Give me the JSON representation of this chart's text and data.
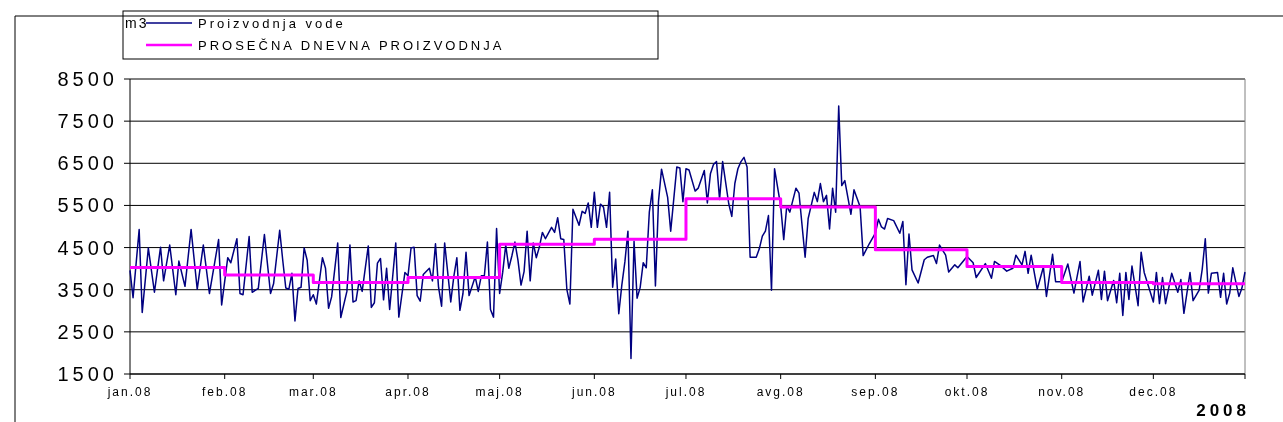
{
  "chart_data": {
    "type": "line",
    "xlabel": "2008",
    "ylabel": "m3",
    "ylim": [
      1500,
      8500
    ],
    "yticks": [
      1500,
      2500,
      3500,
      4500,
      5500,
      6500,
      7500,
      8500
    ],
    "xlim": [
      "2008-01-01",
      "2008-12-31"
    ],
    "xticks": [
      {
        "value": "2008-01-01",
        "label": "jan.08"
      },
      {
        "value": "2008-02-01",
        "label": "feb.08"
      },
      {
        "value": "2008-03-01",
        "label": "mar.08"
      },
      {
        "value": "2008-04-01",
        "label": "apr.08"
      },
      {
        "value": "2008-05-01",
        "label": "maj.08"
      },
      {
        "value": "2008-06-01",
        "label": "jun.08"
      },
      {
        "value": "2008-07-01",
        "label": "jul.08"
      },
      {
        "value": "2008-08-01",
        "label": "avg.08"
      },
      {
        "value": "2008-09-01",
        "label": "sep.08"
      },
      {
        "value": "2008-10-01",
        "label": "okt.08"
      },
      {
        "value": "2008-11-01",
        "label": "nov.08"
      },
      {
        "value": "2008-12-01",
        "label": "dec.08"
      },
      {
        "value": "2008-12-31",
        "label": null
      }
    ],
    "grid": "y",
    "legend": "top left",
    "marker": "none",
    "series": [
      {
        "name": "Proizvodnja vode",
        "color": "#000080",
        "x": [
          "2008-01-01",
          "2008-01-02",
          "2008-01-04",
          "2008-01-05",
          "2008-01-07",
          "2008-01-09",
          "2008-01-11",
          "2008-01-12",
          "2008-01-14",
          "2008-01-16",
          "2008-01-17",
          "2008-01-19",
          "2008-01-21",
          "2008-01-23",
          "2008-01-25",
          "2008-01-27",
          "2008-01-30",
          "2008-01-31",
          "2008-02-02",
          "2008-02-03",
          "2008-02-05",
          "2008-02-06",
          "2008-02-07",
          "2008-02-09",
          "2008-02-10",
          "2008-02-12",
          "2008-02-14",
          "2008-02-16",
          "2008-02-17",
          "2008-02-19",
          "2008-02-20",
          "2008-02-21",
          "2008-02-22",
          "2008-02-23",
          "2008-02-24",
          "2008-02-25",
          "2008-02-26",
          "2008-02-27",
          "2008-02-28",
          "2008-02-29",
          "2008-03-01",
          "2008-03-02",
          "2008-03-04",
          "2008-03-05",
          "2008-03-06",
          "2008-03-07",
          "2008-03-09",
          "2008-03-10",
          "2008-03-12",
          "2008-03-13",
          "2008-03-14",
          "2008-03-15",
          "2008-03-16",
          "2008-03-17",
          "2008-03-19",
          "2008-03-20",
          "2008-03-21",
          "2008-03-22",
          "2008-03-23",
          "2008-03-24",
          "2008-03-25",
          "2008-03-26",
          "2008-03-28",
          "2008-03-29",
          "2008-03-31",
          "2008-04-01",
          "2008-04-02",
          "2008-04-03",
          "2008-04-04",
          "2008-04-05",
          "2008-04-06",
          "2008-04-08",
          "2008-04-09",
          "2008-04-10",
          "2008-04-11",
          "2008-04-12",
          "2008-04-13",
          "2008-04-15",
          "2008-04-16",
          "2008-04-17",
          "2008-04-18",
          "2008-04-19",
          "2008-04-20",
          "2008-04-21",
          "2008-04-23",
          "2008-04-24",
          "2008-04-25",
          "2008-04-26",
          "2008-04-27",
          "2008-04-28",
          "2008-04-29",
          "2008-04-30",
          "2008-05-01",
          "2008-05-02",
          "2008-05-03",
          "2008-05-04",
          "2008-05-05",
          "2008-05-06",
          "2008-05-07",
          "2008-05-08",
          "2008-05-09",
          "2008-05-10",
          "2008-05-11",
          "2008-05-12",
          "2008-05-13",
          "2008-05-14",
          "2008-05-15",
          "2008-05-16",
          "2008-05-18",
          "2008-05-19",
          "2008-05-20",
          "2008-05-21",
          "2008-05-22",
          "2008-05-23",
          "2008-05-24",
          "2008-05-25",
          "2008-05-27",
          "2008-05-28",
          "2008-05-29",
          "2008-05-30",
          "2008-05-31",
          "2008-06-01",
          "2008-06-02",
          "2008-06-03",
          "2008-06-04",
          "2008-06-05",
          "2008-06-06",
          "2008-06-07",
          "2008-06-08",
          "2008-06-09",
          "2008-06-10",
          "2008-06-11",
          "2008-06-12",
          "2008-06-13",
          "2008-06-14",
          "2008-06-15",
          "2008-06-16",
          "2008-06-17",
          "2008-06-18",
          "2008-06-19",
          "2008-06-20",
          "2008-06-21",
          "2008-06-22",
          "2008-06-23",
          "2008-06-25",
          "2008-06-26",
          "2008-06-28",
          "2008-06-29",
          "2008-06-30",
          "2008-07-01",
          "2008-07-02",
          "2008-07-04",
          "2008-07-05",
          "2008-07-07",
          "2008-07-08",
          "2008-07-09",
          "2008-07-10",
          "2008-07-11",
          "2008-07-12",
          "2008-07-13",
          "2008-07-15",
          "2008-07-16",
          "2008-07-17",
          "2008-07-18",
          "2008-07-19",
          "2008-07-20",
          "2008-07-21",
          "2008-07-22",
          "2008-07-24",
          "2008-07-25",
          "2008-07-26",
          "2008-07-27",
          "2008-07-28",
          "2008-07-29",
          "2008-07-30",
          "2008-08-01",
          "2008-08-02",
          "2008-08-03",
          "2008-08-04",
          "2008-08-06",
          "2008-08-07",
          "2008-08-09",
          "2008-08-10",
          "2008-08-12",
          "2008-08-13",
          "2008-08-14",
          "2008-08-15",
          "2008-08-16",
          "2008-08-17",
          "2008-08-18",
          "2008-08-19",
          "2008-08-20",
          "2008-08-21",
          "2008-08-22",
          "2008-08-24",
          "2008-08-25",
          "2008-08-27",
          "2008-08-28",
          "2008-08-30",
          "2008-09-01",
          "2008-09-02",
          "2008-09-03",
          "2008-09-04",
          "2008-09-05",
          "2008-09-07",
          "2008-09-09",
          "2008-09-10",
          "2008-09-11",
          "2008-09-12",
          "2008-09-13",
          "2008-09-15",
          "2008-09-17",
          "2008-09-18",
          "2008-09-20",
          "2008-09-21",
          "2008-09-22",
          "2008-09-24",
          "2008-09-25",
          "2008-09-27",
          "2008-09-28",
          "2008-10-01",
          "2008-10-03",
          "2008-10-04",
          "2008-10-07",
          "2008-10-09",
          "2008-10-10",
          "2008-10-12",
          "2008-10-14",
          "2008-10-16",
          "2008-10-17",
          "2008-10-19",
          "2008-10-20",
          "2008-10-21",
          "2008-10-22",
          "2008-10-24",
          "2008-10-26",
          "2008-10-27",
          "2008-10-29",
          "2008-10-30",
          "2008-11-01",
          "2008-11-03",
          "2008-11-05",
          "2008-11-07",
          "2008-11-08",
          "2008-11-10",
          "2008-11-11",
          "2008-11-13",
          "2008-11-14",
          "2008-11-15",
          "2008-11-16",
          "2008-11-18",
          "2008-11-19",
          "2008-11-20",
          "2008-11-21",
          "2008-11-22",
          "2008-11-23",
          "2008-11-24",
          "2008-11-26",
          "2008-11-27",
          "2008-11-28",
          "2008-12-01",
          "2008-12-02",
          "2008-12-03",
          "2008-12-04",
          "2008-12-05",
          "2008-12-07",
          "2008-12-09",
          "2008-12-10",
          "2008-12-11",
          "2008-12-13",
          "2008-12-14",
          "2008-12-16",
          "2008-12-17",
          "2008-12-18",
          "2008-12-19",
          "2008-12-20",
          "2008-12-22",
          "2008-12-23",
          "2008-12-24",
          "2008-12-25",
          "2008-12-26",
          "2008-12-27",
          "2008-12-29",
          "2008-12-30",
          "2008-12-31"
        ],
        "values": [
          3960,
          3310,
          4930,
          2960,
          4490,
          3440,
          4510,
          3710,
          4560,
          3380,
          4180,
          3580,
          4930,
          3510,
          4560,
          3410,
          4690,
          3140,
          4260,
          4140,
          4710,
          3410,
          3380,
          4760,
          3440,
          3530,
          4810,
          3410,
          3640,
          4910,
          4200,
          3540,
          3510,
          3890,
          2760,
          3530,
          3560,
          4490,
          4200,
          3240,
          3380,
          3160,
          4260,
          4010,
          3060,
          3330,
          4610,
          2840,
          3460,
          4560,
          3210,
          3240,
          3710,
          3460,
          4540,
          3080,
          3190,
          4130,
          4240,
          3260,
          4010,
          3030,
          4610,
          2850,
          3910,
          3830,
          4490,
          4510,
          3360,
          3230,
          3860,
          4010,
          3710,
          4590,
          3560,
          3110,
          4610,
          3210,
          3810,
          4260,
          3010,
          3410,
          4390,
          3360,
          3810,
          3460,
          3830,
          3830,
          4630,
          3030,
          2850,
          4950,
          3410,
          3910,
          4560,
          4010,
          4300,
          4630,
          4200,
          3610,
          3930,
          4890,
          3710,
          4610,
          4260,
          4510,
          4860,
          4710,
          4980,
          4860,
          5210,
          4710,
          4690,
          3510,
          3160,
          5410,
          5030,
          5360,
          5310,
          5560,
          4980,
          5810,
          4980,
          5530,
          5460,
          4980,
          5810,
          3560,
          4230,
          2930,
          3610,
          4160,
          4890,
          1870,
          4650,
          3300,
          3550,
          4140,
          4020,
          5340,
          5870,
          3590,
          5590,
          6360,
          5690,
          4890,
          6410,
          6390,
          5590,
          6370,
          6340,
          5840,
          5910,
          6330,
          5560,
          6250,
          6470,
          6540,
          5640,
          6540,
          5540,
          5240,
          6020,
          6370,
          6540,
          6640,
          6410,
          4270,
          4270,
          4470,
          4770,
          4890,
          5260,
          3490,
          6370,
          5490,
          4690,
          5490,
          5340,
          5910,
          5790,
          4270,
          5190,
          5810,
          5590,
          6020,
          5590,
          5740,
          4940,
          5910,
          5340,
          7860,
          5970,
          6090,
          5290,
          5870,
          5470,
          4310,
          4590,
          4840,
          5170,
          4990,
          4940,
          5190,
          5140,
          4840,
          5120,
          3620,
          4820,
          3970,
          3660,
          4210,
          4270,
          4310,
          4120,
          4560,
          4320,
          3920,
          4090,
          4020,
          4290,
          4140,
          3790,
          4120,
          3770,
          4170,
          4070,
          3940,
          4010,
          4320,
          4090,
          4410,
          3890,
          4320,
          3510,
          4040,
          3340,
          4340,
          3690,
          3690,
          4110,
          3420,
          4170,
          3210,
          3820,
          3370,
          3960,
          3270,
          3940,
          3240,
          3720,
          3190,
          3890,
          2890,
          3910,
          3270,
          4060,
          3120,
          4390,
          3910,
          3210,
          3910,
          3170,
          3790,
          3170,
          3890,
          3440,
          3740,
          2940,
          3910,
          3240,
          3490,
          3990,
          4710,
          3420,
          3890,
          3910,
          3320,
          3890,
          3160,
          3420,
          4020,
          3340,
          3540,
          3920
        ]
      },
      {
        "name": "PROSEČNA DNEVNA PROIZVODNJA",
        "type": "step",
        "color": "#ff00ff",
        "x": [
          "2008-01-01",
          "2008-02-01",
          "2008-03-01",
          "2008-04-01",
          "2008-05-01",
          "2008-06-01",
          "2008-07-01",
          "2008-08-01",
          "2008-09-01",
          "2008-10-01",
          "2008-11-01",
          "2008-12-01",
          "2008-12-31"
        ],
        "values": [
          4030,
          3850,
          3670,
          3790,
          4580,
          4700,
          5660,
          5460,
          4450,
          4050,
          3670,
          3640,
          3640
        ]
      }
    ]
  }
}
